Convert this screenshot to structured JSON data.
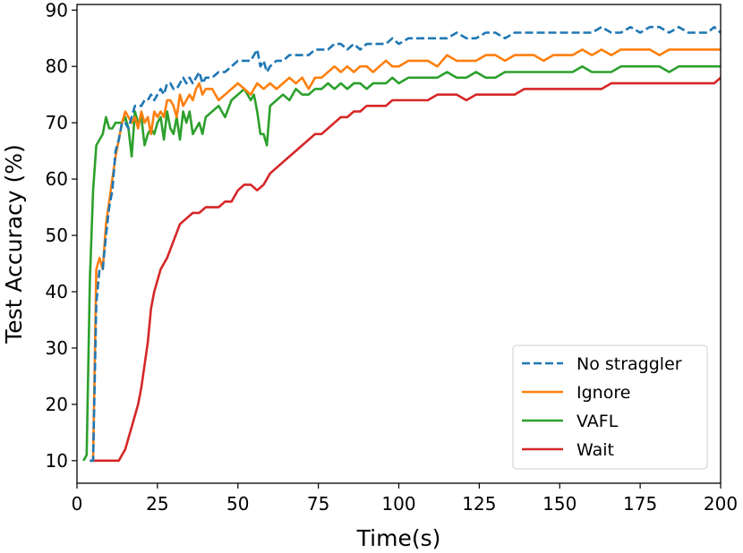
{
  "chart_data": {
    "type": "line",
    "title": "",
    "xlabel": "Time(s)",
    "ylabel": "Test Accuracy (%)",
    "xlim": [
      0,
      200
    ],
    "ylim": [
      6,
      91
    ],
    "xticks": [
      0,
      25,
      50,
      75,
      100,
      125,
      150,
      175,
      200
    ],
    "yticks": [
      10,
      20,
      30,
      40,
      50,
      60,
      70,
      80,
      90
    ],
    "xtick_labels": [
      "0",
      "25",
      "50",
      "75",
      "100",
      "125",
      "150",
      "175",
      "200"
    ],
    "ytick_labels": [
      "10",
      "20",
      "30",
      "40",
      "50",
      "60",
      "70",
      "80",
      "90"
    ],
    "grid": false,
    "legend_position": "lower-right",
    "series": [
      {
        "name": "No straggler",
        "color": "#1f77b4",
        "dashed": true,
        "x": [
          4,
          5,
          6,
          7,
          8,
          9,
          10,
          11,
          12,
          13,
          14,
          15,
          16,
          17,
          18,
          19,
          20,
          21,
          22,
          23,
          24,
          25,
          26,
          27,
          28,
          29,
          30,
          31,
          32,
          33,
          34,
          35,
          36,
          37,
          38,
          39,
          40,
          42,
          44,
          46,
          48,
          50,
          52,
          54,
          55,
          56,
          57,
          58,
          59,
          60,
          62,
          64,
          66,
          68,
          70,
          72,
          74,
          75,
          76,
          78,
          80,
          82,
          84,
          86,
          88,
          90,
          92,
          94,
          96,
          98,
          100,
          103,
          106,
          109,
          112,
          115,
          118,
          121,
          124,
          127,
          130,
          133,
          136,
          139,
          142,
          145,
          148,
          151,
          154,
          157,
          160,
          163,
          166,
          169,
          172,
          175,
          178,
          181,
          184,
          187,
          190,
          193,
          196,
          198,
          200
        ],
        "values": [
          10,
          10,
          38,
          44,
          44,
          50,
          55,
          58,
          65,
          67,
          70,
          70,
          69,
          71,
          73,
          73,
          73,
          74,
          74,
          75,
          74,
          75,
          76,
          75,
          77,
          77,
          76,
          76,
          77,
          78,
          77,
          78,
          77,
          78,
          79,
          77,
          78,
          78,
          79,
          79,
          80,
          81,
          81,
          81,
          82,
          83,
          80,
          81,
          79,
          80,
          81,
          81,
          82,
          82,
          82,
          82,
          83,
          83,
          83,
          83,
          84,
          84,
          83,
          84,
          83,
          84,
          84,
          84,
          84,
          85,
          84,
          85,
          85,
          85,
          85,
          85,
          86,
          85,
          85,
          86,
          86,
          85,
          86,
          86,
          86,
          86,
          86,
          86,
          86,
          86,
          86,
          87,
          86,
          86,
          87,
          86,
          87,
          87,
          86,
          87,
          86,
          86,
          86,
          87,
          86
        ]
      },
      {
        "name": "Ignore",
        "color": "#ff7f0e",
        "dashed": false,
        "x": [
          4,
          5,
          6,
          7,
          8,
          9,
          10,
          11,
          12,
          13,
          14,
          15,
          16,
          17,
          18,
          19,
          20,
          21,
          22,
          23,
          24,
          25,
          26,
          27,
          28,
          29,
          30,
          31,
          32,
          33,
          34,
          35,
          36,
          37,
          38,
          39,
          40,
          42,
          44,
          46,
          48,
          50,
          52,
          54,
          56,
          58,
          60,
          62,
          64,
          66,
          68,
          70,
          72,
          74,
          76,
          78,
          80,
          82,
          84,
          86,
          88,
          90,
          92,
          94,
          96,
          98,
          100,
          103,
          106,
          109,
          112,
          115,
          118,
          121,
          124,
          127,
          130,
          133,
          136,
          139,
          142,
          145,
          148,
          151,
          154,
          157,
          160,
          163,
          166,
          169,
          172,
          175,
          178,
          181,
          184,
          187,
          190,
          193,
          196,
          198,
          200
        ],
        "values": [
          10,
          10,
          44,
          46,
          44,
          52,
          56,
          60,
          64,
          67,
          70,
          72,
          71,
          70,
          71,
          69,
          72,
          70,
          71,
          68,
          72,
          71,
          72,
          71,
          74,
          74,
          73,
          71,
          75,
          73,
          74,
          75,
          74,
          76,
          77,
          75,
          76,
          76,
          74,
          75,
          76,
          77,
          76,
          75,
          77,
          76,
          77,
          76,
          77,
          78,
          77,
          78,
          76,
          78,
          78,
          79,
          80,
          79,
          80,
          79,
          80,
          80,
          79,
          80,
          81,
          80,
          80,
          81,
          81,
          81,
          80,
          82,
          81,
          81,
          81,
          82,
          82,
          81,
          82,
          82,
          82,
          81,
          82,
          82,
          82,
          83,
          82,
          83,
          82,
          83,
          83,
          83,
          83,
          82,
          83,
          83,
          83,
          83,
          83,
          83,
          83
        ]
      },
      {
        "name": "VAFL",
        "color": "#2ca02c",
        "dashed": false,
        "x": [
          2,
          3,
          4,
          5,
          6,
          7,
          8,
          9,
          10,
          11,
          12,
          13,
          14,
          15,
          16,
          17,
          18,
          19,
          20,
          21,
          22,
          23,
          24,
          25,
          26,
          27,
          28,
          29,
          30,
          31,
          32,
          33,
          34,
          35,
          36,
          37,
          38,
          39,
          40,
          42,
          44,
          46,
          48,
          50,
          52,
          54,
          55,
          56,
          57,
          58,
          59,
          60,
          62,
          64,
          66,
          68,
          70,
          72,
          74,
          76,
          78,
          80,
          82,
          84,
          86,
          88,
          90,
          92,
          94,
          96,
          98,
          100,
          103,
          106,
          109,
          112,
          115,
          118,
          121,
          124,
          127,
          130,
          133,
          136,
          139,
          142,
          145,
          148,
          151,
          154,
          157,
          160,
          163,
          166,
          169,
          172,
          175,
          178,
          181,
          184,
          187,
          190,
          193,
          196,
          198,
          200
        ],
        "values": [
          10,
          11,
          42,
          58,
          66,
          67,
          68,
          71,
          69,
          69,
          70,
          70,
          70,
          71,
          69,
          64,
          72,
          70,
          71,
          66,
          68,
          69,
          68,
          70,
          71,
          67,
          72,
          69,
          68,
          71,
          67,
          72,
          70,
          72,
          68,
          69,
          70,
          68,
          71,
          72,
          73,
          71,
          74,
          75,
          76,
          74,
          75,
          72,
          68,
          68,
          66,
          73,
          74,
          75,
          74,
          76,
          75,
          75,
          76,
          76,
          77,
          76,
          77,
          76,
          77,
          77,
          76,
          77,
          77,
          77,
          78,
          77,
          78,
          78,
          78,
          78,
          79,
          78,
          78,
          79,
          78,
          78,
          79,
          79,
          79,
          79,
          79,
          79,
          79,
          79,
          80,
          79,
          79,
          79,
          80,
          80,
          80,
          80,
          80,
          79,
          80,
          80,
          80,
          80,
          80,
          80
        ]
      },
      {
        "name": "Wait",
        "color": "#d62728",
        "dashed": false,
        "x": [
          4,
          6,
          8,
          9,
          10,
          11,
          12,
          13,
          14,
          15,
          16,
          17,
          18,
          19,
          20,
          21,
          22,
          23,
          24,
          25,
          26,
          27,
          28,
          30,
          32,
          34,
          36,
          38,
          40,
          42,
          44,
          46,
          48,
          50,
          52,
          54,
          56,
          58,
          60,
          62,
          64,
          66,
          68,
          70,
          72,
          74,
          76,
          78,
          80,
          82,
          84,
          86,
          88,
          90,
          92,
          94,
          96,
          98,
          100,
          103,
          106,
          109,
          112,
          115,
          118,
          121,
          124,
          127,
          130,
          133,
          136,
          139,
          142,
          145,
          148,
          151,
          154,
          157,
          160,
          163,
          166,
          169,
          172,
          175,
          178,
          181,
          184,
          187,
          190,
          193,
          196,
          198,
          200
        ],
        "values": [
          10,
          10,
          10,
          10,
          10,
          10,
          10,
          10,
          11,
          12,
          14,
          16,
          18,
          20,
          23,
          27,
          31,
          37,
          40,
          42,
          44,
          45,
          46,
          49,
          52,
          53,
          54,
          54,
          55,
          55,
          55,
          56,
          56,
          58,
          59,
          59,
          58,
          59,
          61,
          62,
          63,
          64,
          65,
          66,
          67,
          68,
          68,
          69,
          70,
          71,
          71,
          72,
          72,
          73,
          73,
          73,
          73,
          74,
          74,
          74,
          74,
          74,
          75,
          75,
          75,
          74,
          75,
          75,
          75,
          75,
          75,
          76,
          76,
          76,
          76,
          76,
          76,
          76,
          76,
          76,
          77,
          77,
          77,
          77,
          77,
          77,
          77,
          77,
          77,
          77,
          77,
          77,
          78
        ]
      }
    ]
  }
}
